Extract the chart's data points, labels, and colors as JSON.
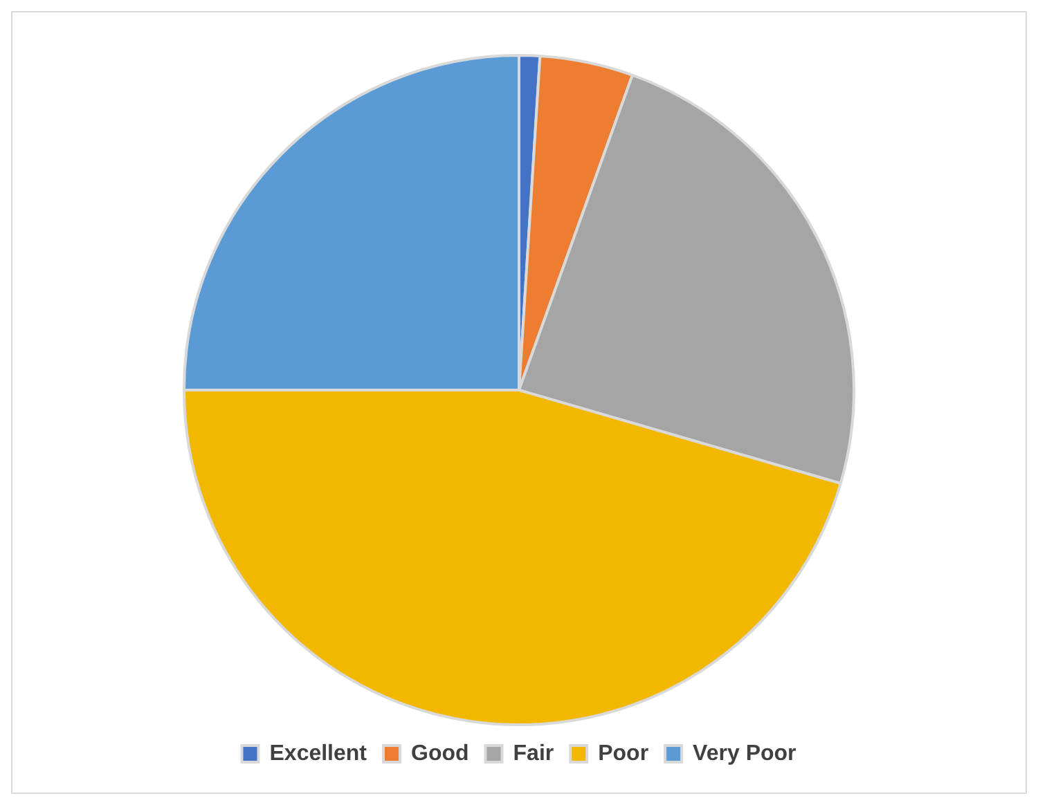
{
  "chart_data": {
    "type": "pie",
    "categories": [
      "Excellent",
      "Good",
      "Fair",
      "Poor",
      "Very Poor"
    ],
    "values": [
      1,
      4.5,
      24,
      45.5,
      25
    ],
    "colors": [
      "#4472c4",
      "#ed7d31",
      "#a5a5a5",
      "#f2b800",
      "#5b9bd5"
    ],
    "legend": "bottom"
  }
}
